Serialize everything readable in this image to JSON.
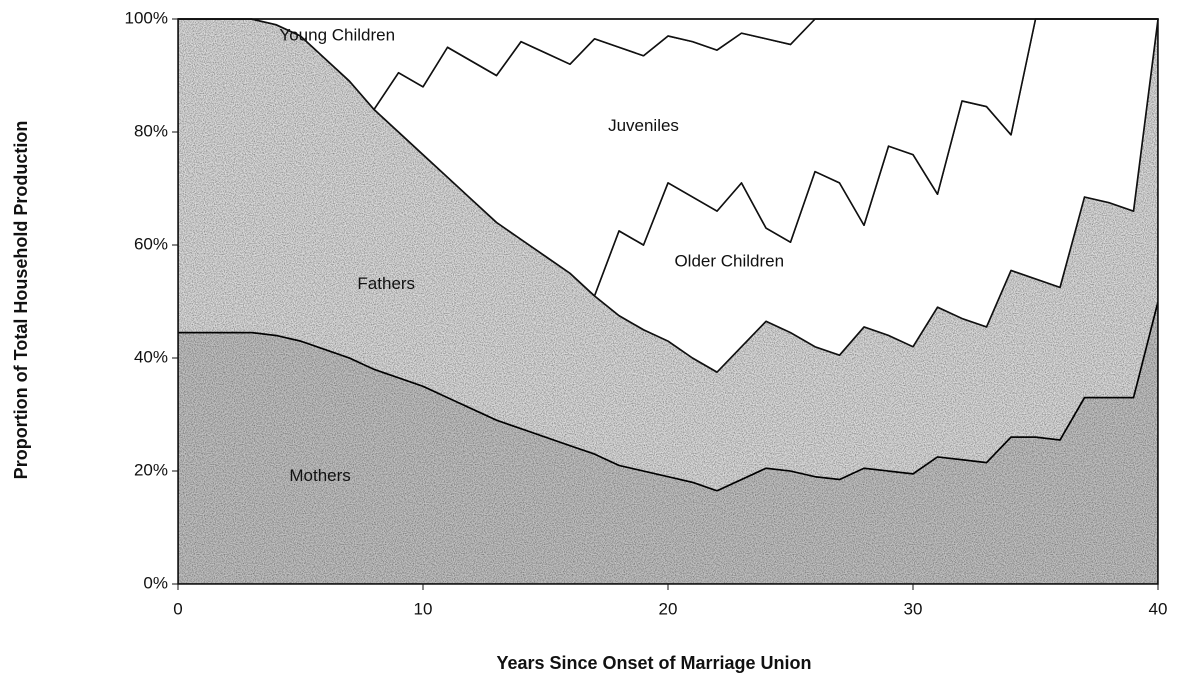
{
  "chart_data": {
    "type": "stacked_area",
    "x_label": "Years Since Onset of Marriage Union",
    "y_label": "Proportion of Total Household Production",
    "x": [
      0,
      1,
      2,
      3,
      4,
      5,
      6,
      7,
      8,
      9,
      10,
      11,
      12,
      13,
      14,
      15,
      16,
      17,
      18,
      19,
      20,
      21,
      22,
      23,
      24,
      25,
      26,
      27,
      28,
      29,
      30,
      31,
      32,
      33,
      34,
      35,
      36,
      37,
      38,
      39,
      40
    ],
    "xlim": [
      0,
      40
    ],
    "xticks": [
      0,
      10,
      20,
      30,
      40
    ],
    "ylim": [
      0,
      100
    ],
    "yticks": [
      {
        "value": 0,
        "label": "0%"
      },
      {
        "value": 20,
        "label": "20%"
      },
      {
        "value": 40,
        "label": "40%"
      },
      {
        "value": 60,
        "label": "60%"
      },
      {
        "value": 80,
        "label": "80%"
      },
      {
        "value": 100,
        "label": "100%"
      }
    ],
    "series": [
      {
        "name": "Mothers",
        "color": "#c4c4c4",
        "values": [
          44.5,
          44.5,
          44.5,
          44.5,
          44,
          43,
          41.5,
          40,
          38,
          36.5,
          35,
          33,
          31,
          29,
          27.5,
          26,
          24.5,
          23,
          21,
          20,
          19,
          18,
          16.5,
          18.5,
          20.5,
          20,
          19,
          18.5,
          20.5,
          20,
          19.5,
          22.5,
          22,
          21.5,
          26,
          26,
          25.5,
          33,
          33,
          33,
          50
        ]
      },
      {
        "name": "Fathers",
        "color": "#dedede",
        "values": [
          55.5,
          55.5,
          55.5,
          55.5,
          55,
          54,
          51.5,
          49,
          46,
          43.5,
          41,
          39,
          37,
          35,
          33.5,
          32,
          30.5,
          28,
          26.5,
          25,
          24,
          22,
          21,
          23.5,
          26,
          24.5,
          23,
          22,
          25,
          24,
          22.5,
          26.5,
          25,
          24,
          29.5,
          28,
          27,
          35.5,
          34.5,
          33,
          50
        ]
      },
      {
        "name": "Older Children",
        "color": "#ffffff",
        "values": [
          0,
          0,
          0,
          0,
          0,
          0,
          0,
          0,
          0,
          0,
          0,
          0,
          0,
          0,
          0,
          0,
          0,
          0,
          15,
          15,
          28,
          28.5,
          28.5,
          29,
          16.5,
          16,
          31,
          30.5,
          18,
          33.5,
          34,
          20,
          38.5,
          39,
          24,
          46,
          47.5,
          31.5,
          32.5,
          34,
          0
        ]
      },
      {
        "name": "Juveniles",
        "color": "#ffffff",
        "values": [
          0,
          0,
          0,
          0,
          0,
          0,
          0,
          0,
          0,
          10.5,
          12,
          23,
          24.5,
          26,
          35,
          36,
          37,
          45.5,
          32.5,
          33.5,
          26,
          27.5,
          28.5,
          26.5,
          33.5,
          35,
          27,
          29,
          36.5,
          22.5,
          24,
          31,
          14.5,
          15.5,
          20.5,
          0,
          0,
          0,
          0,
          0,
          0
        ]
      },
      {
        "name": "Young Children",
        "color": "#ffffff",
        "values": [
          0,
          0,
          0,
          0,
          1,
          3,
          7,
          11,
          16,
          9.5,
          12,
          5,
          7.5,
          10,
          4,
          6,
          8,
          3.5,
          5,
          6.5,
          3,
          4,
          5.5,
          2.5,
          3.5,
          4.5,
          0,
          0,
          0,
          0,
          0,
          0,
          0,
          0,
          0,
          0,
          0,
          0,
          0,
          0,
          0
        ]
      }
    ]
  }
}
